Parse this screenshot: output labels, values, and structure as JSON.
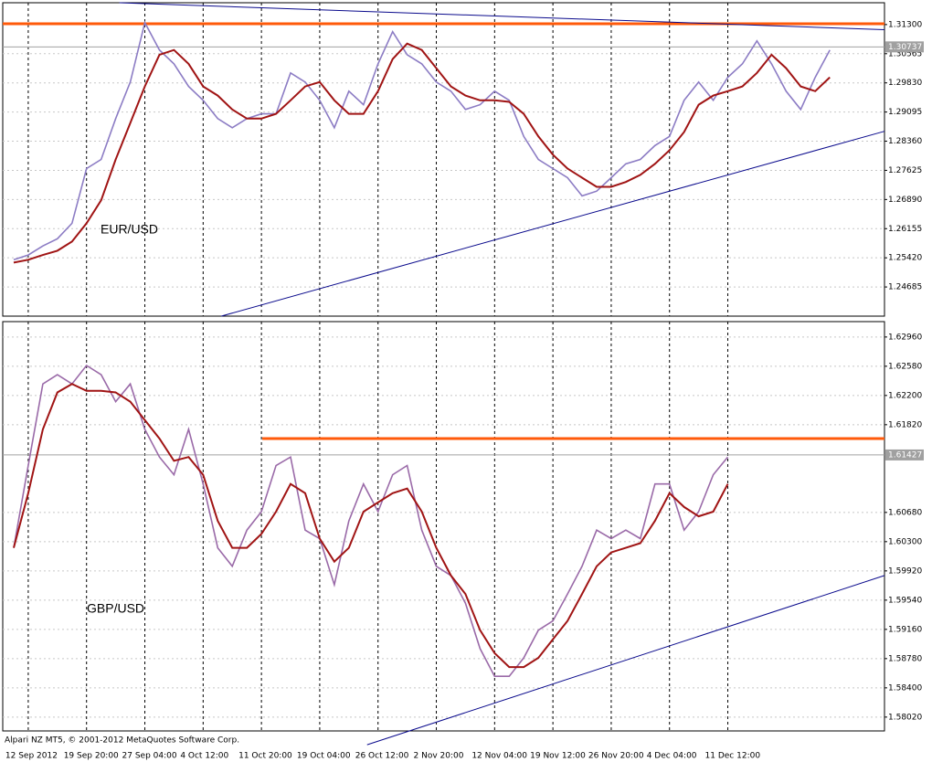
{
  "chart_data": [
    {
      "type": "line",
      "label": "EUR/USD",
      "series": [
        {
          "color": "#8c7cc4",
          "values": [
            1.2537,
            1.2549,
            1.2572,
            1.259,
            1.2629,
            1.2767,
            1.279,
            1.2893,
            1.2985,
            1.3135,
            1.3066,
            1.3031,
            1.2974,
            1.2939,
            1.2893,
            1.287,
            1.2893,
            1.2905,
            1.2905,
            1.3008,
            1.2985,
            1.2939,
            1.287,
            1.2962,
            1.2928,
            1.3031,
            1.3112,
            1.3054,
            1.3031,
            1.2985,
            1.2962,
            1.2916,
            1.2928,
            1.2962,
            1.2939,
            1.2848,
            1.279,
            1.2767,
            1.2744,
            1.2698,
            1.271,
            1.2744,
            1.2779,
            1.279,
            1.2825,
            1.2848,
            1.2939,
            1.2985,
            1.2939,
            1.2997,
            1.3031,
            1.3089,
            1.3031,
            1.2962,
            1.2916,
            1.2997,
            1.3066
          ]
        },
        {
          "color": "#a01414",
          "values": [
            1.253,
            1.2537,
            1.2549,
            1.256,
            1.2583,
            1.2629,
            1.2687,
            1.279,
            1.2882,
            1.2974,
            1.3054,
            1.3066,
            1.3031,
            1.2974,
            1.2951,
            1.2916,
            1.2893,
            1.2893,
            1.2905,
            1.2939,
            1.2974,
            1.2985,
            1.2939,
            1.2905,
            1.2905,
            1.2962,
            1.3043,
            1.3082,
            1.3066,
            1.302,
            1.2974,
            1.2951,
            1.2939,
            1.2939,
            1.2935,
            1.2905,
            1.2848,
            1.2802,
            1.2767,
            1.2744,
            1.2721,
            1.2721,
            1.2733,
            1.2751,
            1.2779,
            1.2813,
            1.2859,
            1.2928,
            1.2951,
            1.2962,
            1.2974,
            1.3008,
            1.3054,
            1.302,
            1.2974,
            1.2962,
            1.2997
          ]
        }
      ],
      "xlim": [
        -0.75,
        59.75
      ],
      "ylim": [
        1.2395,
        1.3185
      ],
      "yticks": [
        {
          "value": 1.313,
          "label": "1.31300"
        },
        1.30565,
        {
          "value": 1.2983,
          "label": "1.29830"
        },
        1.29095,
        {
          "value": 1.2836,
          "label": "1.28360"
        },
        1.27625,
        {
          "value": 1.2689,
          "label": "1.26890"
        },
        1.26155,
        {
          "value": 1.2542,
          "label": "1.25420"
        },
        1.24685
      ],
      "current_price": 1.30737,
      "levels": [
        {
          "value": 1.3132,
          "color": "#ff5a0a"
        }
      ],
      "trendlines": [
        {
          "from": [
            7.25,
            1.3185
          ],
          "to": [
            59.75,
            1.3117
          ],
          "color": "#0a0a8c"
        },
        {
          "from": [
            14.25,
            1.2395
          ],
          "to": [
            59.75,
            1.2861
          ],
          "color": "#0a0a8c"
        }
      ],
      "grid": true
    },
    {
      "type": "line",
      "label": "GBP/USD",
      "categories": [
        null,
        "12 Sep 2012",
        null,
        null,
        null,
        "19 Sep 20:00",
        null,
        null,
        null,
        "27 Sep 04:00",
        null,
        null,
        null,
        "4 Oct 12:00",
        null,
        null,
        null,
        "11 Oct 20:00",
        null,
        null,
        null,
        "19 Oct 04:00",
        null,
        null,
        null,
        "26 Oct 12:00",
        null,
        null,
        null,
        "2 Nov 20:00",
        null,
        null,
        null,
        "12 Nov 04:00",
        null,
        null,
        null,
        "19 Nov 12:00",
        null,
        null,
        null,
        "26 Nov 20:00",
        null,
        null,
        null,
        "4 Dec 04:00",
        null,
        null,
        null,
        "11 Dec 12:00",
        null,
        null,
        null,
        null,
        null,
        null,
        null
      ],
      "series": [
        {
          "color": "#9a6aa8",
          "values": [
            1.6022,
            1.6129,
            1.6235,
            1.6247,
            1.6235,
            1.6259,
            1.6247,
            1.6212,
            1.6235,
            1.6176,
            1.614,
            1.6117,
            1.6176,
            1.6105,
            1.6022,
            1.5998,
            1.6045,
            1.6069,
            1.6129,
            1.614,
            1.6045,
            1.6034,
            1.5974,
            1.6057,
            1.6105,
            1.6069,
            1.6117,
            1.6129,
            1.6045,
            1.5998,
            1.5986,
            1.595,
            1.5891,
            1.5855,
            1.5855,
            1.5879,
            1.5915,
            1.5927,
            1.5962,
            1.5998,
            1.6045,
            1.6034,
            1.6045,
            1.6034,
            1.6105,
            1.6105,
            1.6045,
            1.6069,
            1.6117,
            1.614,
            null,
            null,
            null,
            null,
            null,
            null,
            null
          ]
        },
        {
          "color": "#a01414",
          "values": [
            1.6022,
            1.6093,
            1.6176,
            1.6224,
            1.6235,
            1.6226,
            1.6226,
            1.6224,
            1.6212,
            1.6188,
            1.6164,
            1.6135,
            1.614,
            1.6117,
            1.6057,
            1.6022,
            1.6022,
            1.604,
            1.6069,
            1.6105,
            1.6093,
            1.6034,
            1.6004,
            1.6022,
            1.6069,
            1.6081,
            1.6093,
            1.6099,
            1.6069,
            1.6022,
            1.5986,
            1.5962,
            1.5915,
            1.5885,
            1.5867,
            1.5867,
            1.5879,
            1.5903,
            1.5927,
            1.5962,
            1.5998,
            1.6016,
            1.6022,
            1.6028,
            1.6057,
            1.6093,
            1.6075,
            1.6063,
            1.6069,
            1.6105,
            null,
            null,
            null,
            null,
            null,
            null,
            null
          ]
        }
      ],
      "xlim": [
        -0.75,
        59.75
      ],
      "ylim": [
        1.5784,
        1.6316
      ],
      "yticks": [
        {
          "value": 1.6296,
          "label": "1.62960"
        },
        {
          "value": 1.6258,
          "label": "1.62580"
        },
        {
          "value": 1.622,
          "label": "1.62200"
        },
        {
          "value": 1.6182,
          "label": "1.61820"
        },
        {
          "value": 1.6068,
          "label": "1.60680"
        },
        {
          "value": 1.603,
          "label": "1.60300"
        },
        {
          "value": 1.5992,
          "label": "1.59920"
        },
        {
          "value": 1.5954,
          "label": "1.59540"
        },
        {
          "value": 1.5916,
          "label": "1.59160"
        },
        {
          "value": 1.5878,
          "label": "1.58780"
        },
        {
          "value": 1.584,
          "label": "1.58400"
        },
        {
          "value": 1.5802,
          "label": "1.58020"
        }
      ],
      "current_price": 1.61427,
      "levels": [
        {
          "value": 1.6164,
          "color": "#ff5a0a",
          "from": 17.06
        }
      ],
      "trendlines": [
        {
          "from": [
            24.25,
            1.5766
          ],
          "to": [
            59.75,
            1.5986
          ],
          "color": "#0a0a8c"
        }
      ],
      "grid": true
    }
  ],
  "footer": "Alpari NZ MT5, © 2001-2012 MetaQuotes Software Corp."
}
